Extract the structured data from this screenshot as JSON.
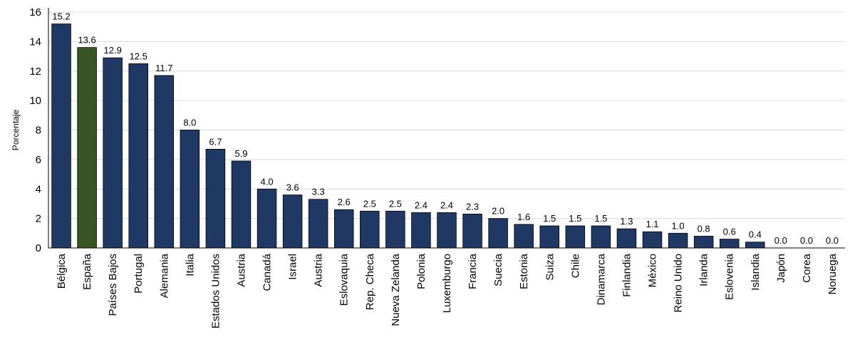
{
  "chart_data": {
    "type": "bar",
    "ylabel": "Porcentaje",
    "ylim": [
      0,
      16
    ],
    "yticks": [
      0,
      2,
      4,
      6,
      8,
      10,
      12,
      14,
      16
    ],
    "grid": true,
    "categories": [
      "Bélgica",
      "España",
      "Países Bajos",
      "Portugal",
      "Alemania",
      "Italia",
      "Estados Unidos",
      "Austria",
      "Canadá",
      "Israel",
      "Austria",
      "Eslovaquia",
      "Rep. Checa",
      "Nueva Zelanda",
      "Polonia",
      "Luxemburgo",
      "Francia",
      "Suecia",
      "Estonia",
      "Suiza",
      "Chile",
      "Dinamarca",
      "Finlandia",
      "México",
      "Reino Unido",
      "Irlanda",
      "Eslovenia",
      "Islandia",
      "Japón",
      "Corea",
      "Noruega"
    ],
    "values": [
      15.2,
      13.6,
      12.9,
      12.5,
      11.7,
      8.0,
      6.7,
      5.9,
      4.0,
      3.6,
      3.3,
      2.6,
      2.5,
      2.5,
      2.4,
      2.4,
      2.3,
      2.0,
      1.6,
      1.5,
      1.5,
      1.5,
      1.3,
      1.1,
      1.0,
      0.8,
      0.6,
      0.4,
      0.0,
      0.0,
      0.0
    ],
    "data_labels": [
      "15.2",
      "13.6",
      "12.9",
      "12.5",
      "11.7",
      "8.0",
      "6.7",
      "5.9",
      "4.0",
      "3.6",
      "3.3",
      "2.6",
      "2.5",
      "2.5",
      "2.4",
      "2.4",
      "2.3",
      "2.0",
      "1.6",
      "1.5",
      "1.5",
      "1.5",
      "1.3",
      "1.1",
      "1.0",
      "0.8",
      "0.6",
      "0.4",
      "0.0",
      "0.0",
      "0.0"
    ],
    "highlight_category": "España",
    "colors": {
      "default": "#1f3864",
      "highlight": "#375623",
      "grid": "#d9d9d9"
    }
  }
}
